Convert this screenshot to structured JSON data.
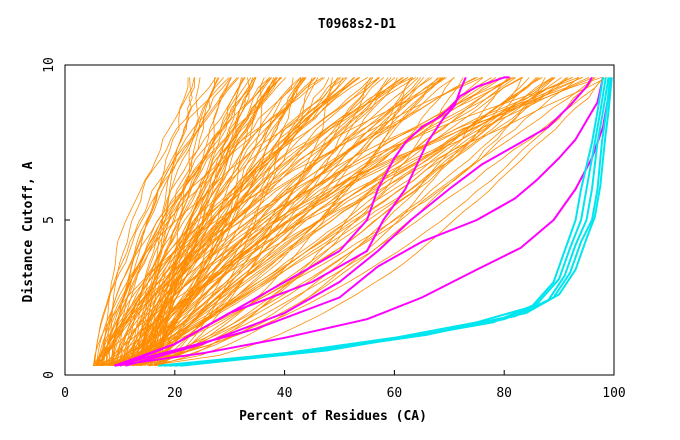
{
  "chart_data": {
    "type": "line",
    "title": "T0968s2-D1",
    "xlabel": "Percent of Residues (CA)",
    "ylabel": "Distance Cutoff, A",
    "xlim": [
      0,
      100
    ],
    "ylim": [
      0,
      10
    ],
    "x_ticks": [
      "0",
      "20",
      "40",
      "60",
      "80",
      "100"
    ],
    "y_ticks": [
      "0",
      "5",
      "10"
    ],
    "grid": false,
    "legend": "none",
    "colors": {
      "background": "#ffffff",
      "frame": "#000000",
      "orange": "#ff8c00",
      "magenta": "#ff00ff",
      "cyan": "#00e5ee"
    },
    "series_groups": [
      {
        "name": "orange-models",
        "color": "#ff8c00",
        "count": 150,
        "start_x_range": [
          5,
          18
        ],
        "x_at_10A_range": [
          20,
          100
        ],
        "curve_exponent_range": [
          0.5,
          1.9
        ]
      }
    ],
    "series": [
      {
        "name": "magenta-1",
        "color": "#ff00ff",
        "x": [
          9,
          20,
          30,
          40,
          50,
          55,
          57,
          60,
          62,
          65,
          68,
          70,
          72,
          75,
          80,
          81
        ],
        "y": [
          0.3,
          1.0,
          2.0,
          3.0,
          4.0,
          5.0,
          6.0,
          7.0,
          7.5,
          8.0,
          8.3,
          8.6,
          9.0,
          9.3,
          9.6,
          9.6
        ]
      },
      {
        "name": "magenta-2",
        "color": "#ff00ff",
        "x": [
          10,
          20,
          30,
          45,
          55,
          58,
          62,
          66,
          69,
          71,
          72,
          73
        ],
        "y": [
          0.3,
          1.0,
          2.0,
          3.0,
          4.0,
          5.0,
          6.0,
          7.5,
          8.3,
          8.7,
          9.2,
          9.6
        ]
      },
      {
        "name": "magenta-3",
        "color": "#ff00ff",
        "x": [
          11,
          25,
          40,
          50,
          57,
          63,
          70,
          76,
          82,
          88,
          92,
          95,
          96
        ],
        "y": [
          0.3,
          1.0,
          2.0,
          3.0,
          4.0,
          5.0,
          6.0,
          6.8,
          7.4,
          8.0,
          8.7,
          9.3,
          9.6
        ]
      },
      {
        "name": "magenta-4",
        "color": "#ff00ff",
        "x": [
          9,
          20,
          35,
          50,
          57,
          65,
          75,
          82,
          86,
          90,
          93,
          95,
          97,
          98
        ],
        "y": [
          0.3,
          0.8,
          1.5,
          2.5,
          3.5,
          4.3,
          5.0,
          5.7,
          6.3,
          7.0,
          7.6,
          8.2,
          8.8,
          9.6
        ]
      },
      {
        "name": "magenta-5",
        "color": "#ff00ff",
        "x": [
          9,
          25,
          40,
          55,
          65,
          75,
          83,
          89,
          93,
          96,
          98,
          99,
          99.5
        ],
        "y": [
          0.3,
          0.7,
          1.2,
          1.8,
          2.5,
          3.4,
          4.1,
          5.0,
          6.0,
          7.0,
          8.0,
          9.0,
          9.6
        ]
      },
      {
        "name": "cyan-1",
        "color": "#00e5ee",
        "x": [
          17,
          40,
          60,
          75,
          85,
          89,
          91,
          93,
          94,
          96,
          97,
          98
        ],
        "y": [
          0.3,
          0.7,
          1.2,
          1.7,
          2.2,
          3.0,
          4.0,
          5.0,
          6.0,
          7.5,
          8.5,
          9.6
        ]
      },
      {
        "name": "cyan-2",
        "color": "#00e5ee",
        "x": [
          18,
          42,
          62,
          78,
          86,
          90,
          92,
          94,
          95,
          96.5,
          97.5,
          98.5
        ],
        "y": [
          0.3,
          0.7,
          1.2,
          1.7,
          2.3,
          3.1,
          4.1,
          5.0,
          6.0,
          7.5,
          8.5,
          9.6
        ]
      },
      {
        "name": "cyan-3",
        "color": "#00e5ee",
        "x": [
          19,
          45,
          65,
          80,
          88,
          91,
          93,
          95,
          96,
          97,
          98,
          99
        ],
        "y": [
          0.3,
          0.8,
          1.3,
          1.8,
          2.4,
          3.2,
          4.2,
          5.0,
          6.0,
          7.5,
          8.5,
          9.6
        ]
      },
      {
        "name": "cyan-4",
        "color": "#00e5ee",
        "x": [
          20,
          46,
          66,
          82,
          89,
          92,
          94,
          96,
          97,
          97.8,
          98.6,
          99.3
        ],
        "y": [
          0.3,
          0.8,
          1.3,
          1.9,
          2.5,
          3.3,
          4.3,
          5.0,
          6.0,
          7.5,
          8.5,
          9.6
        ]
      },
      {
        "name": "cyan-5",
        "color": "#00e5ee",
        "x": [
          21,
          48,
          68,
          84,
          90,
          93,
          95,
          96.5,
          97.5,
          98.3,
          99,
          99.6
        ],
        "y": [
          0.3,
          0.8,
          1.4,
          2.0,
          2.6,
          3.4,
          4.4,
          5.1,
          6.1,
          7.5,
          8.5,
          9.6
        ]
      }
    ]
  }
}
